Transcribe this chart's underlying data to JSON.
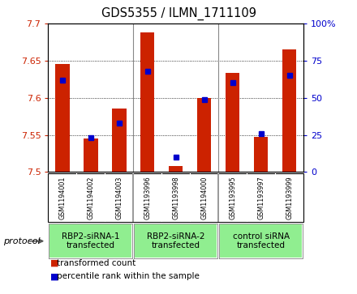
{
  "title": "GDS5355 / ILMN_1711109",
  "samples": [
    "GSM1194001",
    "GSM1194002",
    "GSM1194003",
    "GSM1193996",
    "GSM1193998",
    "GSM1194000",
    "GSM1193995",
    "GSM1193997",
    "GSM1193999"
  ],
  "red_values": [
    7.645,
    7.545,
    7.585,
    7.688,
    7.508,
    7.6,
    7.633,
    7.547,
    7.665
  ],
  "blue_values": [
    62,
    23,
    33,
    68,
    10,
    49,
    60,
    26,
    65
  ],
  "ylim_left": [
    7.5,
    7.7
  ],
  "ylim_right": [
    0,
    100
  ],
  "yticks_left": [
    7.5,
    7.55,
    7.6,
    7.65,
    7.7
  ],
  "yticks_right": [
    0,
    25,
    50,
    75,
    100
  ],
  "group_starts": [
    0,
    3,
    6
  ],
  "group_ends": [
    3,
    6,
    9
  ],
  "group_labels": [
    "RBP2-siRNA-1\ntransfected",
    "RBP2-siRNA-2\ntransfected",
    "control siRNA\ntransfected"
  ],
  "bar_color": "#CC2200",
  "dot_color": "#0000CC",
  "bar_width": 0.5,
  "background_color": "#ffffff",
  "tick_color_left": "#CC2200",
  "tick_color_right": "#0000CC",
  "legend_items": [
    {
      "label": "transformed count",
      "color": "#CC2200"
    },
    {
      "label": "percentile rank within the sample",
      "color": "#0000CC"
    }
  ],
  "grid_yticks": [
    7.55,
    7.6,
    7.65
  ],
  "protocol_label": "protocol",
  "sample_box_color": "#D0D0D0",
  "group_box_color": "#90EE90",
  "divider_color": "#888888"
}
